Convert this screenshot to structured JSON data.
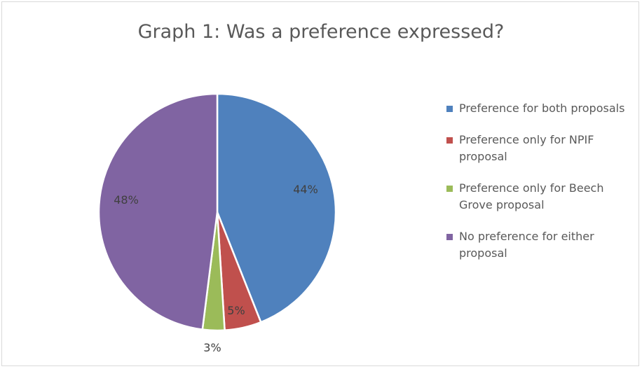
{
  "chart_data": {
    "type": "pie",
    "title": "Graph 1: Was a preference expressed?",
    "slices": [
      {
        "label": "Preference for both proposals",
        "value": 44,
        "display": "44%",
        "color": "#4f81bd"
      },
      {
        "label": "Preference only for NPIF proposal",
        "value": 5,
        "display": "5%",
        "color": "#c0504d"
      },
      {
        "label": "Preference only for Beech Grove proposal",
        "value": 3,
        "display": "3%",
        "color": "#9bbb59"
      },
      {
        "label": "No preference for either proposal",
        "value": 48,
        "display": "48%",
        "color": "#8064a2"
      }
    ],
    "legend_position": "right"
  }
}
